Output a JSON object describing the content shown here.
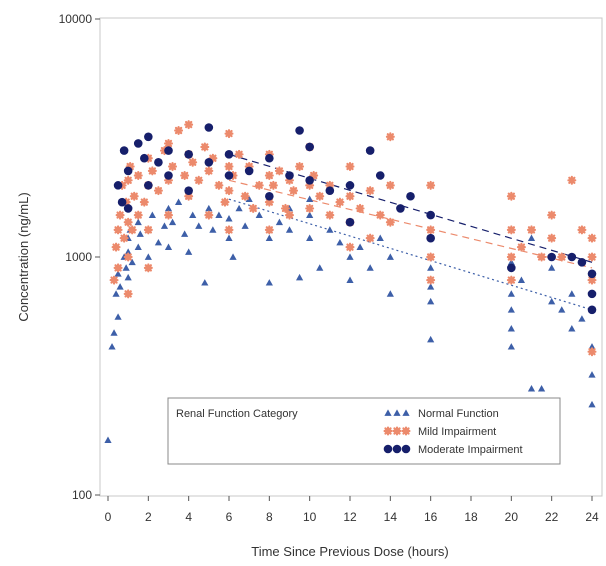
{
  "chart_data": {
    "type": "scatter",
    "xlabel": "Time Since Previous Dose (hours)",
    "ylabel": "Concentration (ng/mL)",
    "xlim": [
      -0.5,
      24.3
    ],
    "ylim": [
      100,
      10000
    ],
    "yscale": "log",
    "xticks": [
      0,
      2,
      4,
      6,
      8,
      10,
      12,
      14,
      16,
      18,
      20,
      22,
      24
    ],
    "yticks": [
      100,
      1000,
      10000
    ],
    "ytick_labels": [
      "100",
      "1000",
      "10000"
    ],
    "grid": false,
    "legend": {
      "title": "Renal Function Category",
      "placement": "bottom-center",
      "entries": [
        {
          "label": "Normal Function",
          "series": 0
        },
        {
          "label": "Mild Impairment",
          "series": 1
        },
        {
          "label": "Moderate Impairment",
          "series": 2
        }
      ]
    },
    "series": [
      {
        "name": "Normal Function",
        "marker": "triangle",
        "color": "#3d5fa8",
        "x": [
          0.0,
          0.2,
          0.3,
          0.4,
          0.5,
          0.5,
          0.6,
          0.8,
          0.9,
          1.0,
          1.0,
          1.0,
          1.1,
          1.2,
          1.5,
          1.5,
          1.6,
          2.0,
          2.0,
          2.2,
          2.5,
          2.8,
          3.0,
          3.0,
          3.2,
          3.5,
          3.8,
          4.0,
          4.0,
          4.2,
          4.5,
          4.8,
          5.0,
          5.2,
          5.5,
          5.8,
          6.0,
          6.0,
          6.2,
          6.5,
          6.8,
          7.0,
          7.5,
          8.0,
          8.0,
          8.0,
          8.5,
          9.0,
          9.0,
          9.5,
          10.0,
          10.0,
          10.0,
          10.5,
          11.0,
          11.5,
          12.0,
          12.0,
          12.0,
          12.5,
          13.0,
          13.5,
          14.0,
          14.0,
          16.0,
          16.0,
          16.0,
          16.0,
          20.0,
          20.0,
          20.0,
          20.0,
          20.0,
          20.5,
          21.0,
          21.0,
          21.5,
          22.0,
          22.0,
          22.5,
          23.0,
          23.0,
          23.5,
          24.0,
          24.0,
          24.0,
          24.0
        ],
        "y": [
          170,
          420,
          480,
          700,
          850,
          560,
          750,
          1000,
          900,
          1200,
          820,
          1050,
          1300,
          950,
          1100,
          1400,
          1250,
          1300,
          1000,
          1500,
          1150,
          1350,
          1600,
          1100,
          1400,
          1700,
          1250,
          1800,
          1050,
          1500,
          1350,
          780,
          1600,
          1300,
          1500,
          1700,
          1200,
          1450,
          1000,
          1600,
          1350,
          1750,
          1500,
          1700,
          1200,
          780,
          1400,
          1300,
          1600,
          820,
          1500,
          1200,
          1750,
          900,
          1300,
          1150,
          1400,
          1000,
          800,
          1100,
          900,
          1200,
          1000,
          700,
          900,
          750,
          650,
          450,
          950,
          600,
          500,
          420,
          700,
          800,
          1200,
          280,
          280,
          900,
          650,
          600,
          500,
          700,
          550,
          420,
          320,
          240,
          600
        ]
      },
      {
        "name": "Mild Impairment",
        "marker": "star",
        "color": "#ec8a6c",
        "x": [
          0.3,
          0.4,
          0.5,
          0.5,
          0.6,
          0.7,
          0.8,
          0.9,
          1.0,
          1.0,
          1.0,
          1.0,
          1.1,
          1.2,
          1.3,
          1.5,
          1.5,
          1.8,
          2.0,
          2.0,
          2.0,
          2.0,
          2.2,
          2.5,
          2.8,
          3.0,
          3.0,
          3.0,
          3.2,
          3.5,
          3.8,
          4.0,
          4.0,
          4.0,
          4.2,
          4.5,
          4.8,
          5.0,
          5.0,
          5.2,
          5.5,
          5.8,
          6.0,
          6.0,
          6.0,
          6.0,
          6.2,
          6.5,
          6.8,
          7.0,
          7.2,
          7.5,
          8.0,
          8.0,
          8.0,
          8.0,
          8.2,
          8.5,
          8.8,
          9.0,
          9.0,
          9.2,
          9.5,
          10.0,
          10.0,
          10.0,
          10.2,
          10.5,
          11.0,
          11.0,
          11.5,
          12.0,
          12.0,
          12.0,
          12.0,
          12.5,
          13.0,
          13.0,
          13.5,
          14.0,
          14.0,
          14.0,
          16.0,
          16.0,
          16.0,
          16.0,
          20.0,
          20.0,
          20.0,
          20.0,
          20.5,
          21.0,
          21.5,
          22.0,
          22.0,
          22.5,
          23.0,
          23.5,
          24.0,
          24.0,
          24.0,
          24.0
        ],
        "y": [
          800,
          1100,
          1300,
          900,
          1500,
          2000,
          1200,
          1700,
          2100,
          1400,
          1000,
          700,
          2400,
          1300,
          1800,
          2200,
          1500,
          1700,
          2600,
          2000,
          1300,
          900,
          2300,
          1900,
          2800,
          3000,
          2100,
          1500,
          2400,
          3400,
          2200,
          3600,
          2700,
          1800,
          2500,
          2100,
          2900,
          2300,
          1500,
          2600,
          2000,
          1700,
          3300,
          2400,
          1900,
          1300,
          2200,
          2700,
          1800,
          2400,
          1600,
          2000,
          2700,
          2200,
          1700,
          1300,
          2000,
          2300,
          1600,
          2100,
          1500,
          1900,
          2400,
          2900,
          2000,
          1600,
          2200,
          1800,
          2000,
          1500,
          1700,
          2400,
          1800,
          1400,
          1100,
          1600,
          1900,
          1200,
          1500,
          3200,
          2000,
          1400,
          2000,
          1300,
          1000,
          800,
          1800,
          1300,
          1000,
          800,
          1100,
          1300,
          1000,
          1500,
          1200,
          1000,
          2100,
          1300,
          1200,
          1000,
          800,
          400
        ]
      },
      {
        "name": "Moderate Impairment",
        "marker": "circle",
        "color": "#161f6b",
        "x": [
          0.5,
          0.7,
          0.8,
          1.0,
          1.0,
          1.5,
          1.8,
          2.0,
          2.0,
          2.5,
          3.0,
          3.0,
          4.0,
          4.0,
          5.0,
          5.0,
          6.0,
          6.0,
          7.0,
          8.0,
          8.0,
          9.0,
          9.5,
          10.0,
          10.0,
          11.0,
          12.0,
          12.0,
          13.0,
          13.5,
          14.5,
          15.0,
          16.0,
          16.0,
          20.0,
          22.0,
          23.0,
          23.5,
          24.0,
          24.0,
          24.0
        ],
        "y": [
          2000,
          1700,
          2800,
          2300,
          1600,
          3000,
          2600,
          3200,
          2000,
          2500,
          2800,
          2200,
          2700,
          1900,
          3500,
          2500,
          2700,
          2200,
          2300,
          2600,
          1800,
          2200,
          3400,
          2900,
          2100,
          1900,
          2000,
          1400,
          2800,
          2200,
          1600,
          1800,
          1500,
          1200,
          900,
          1000,
          1000,
          950,
          850,
          700,
          600
        ]
      }
    ],
    "trend_lines": [
      {
        "series": 0,
        "style": "dotted",
        "x": [
          6,
          24
        ],
        "y": [
          1750,
          600
        ]
      },
      {
        "series": 1,
        "style": "dashed",
        "x": [
          6,
          24
        ],
        "y": [
          2100,
          900
        ]
      },
      {
        "series": 2,
        "style": "dashed",
        "x": [
          6,
          24
        ],
        "y": [
          2700,
          950
        ]
      }
    ]
  }
}
